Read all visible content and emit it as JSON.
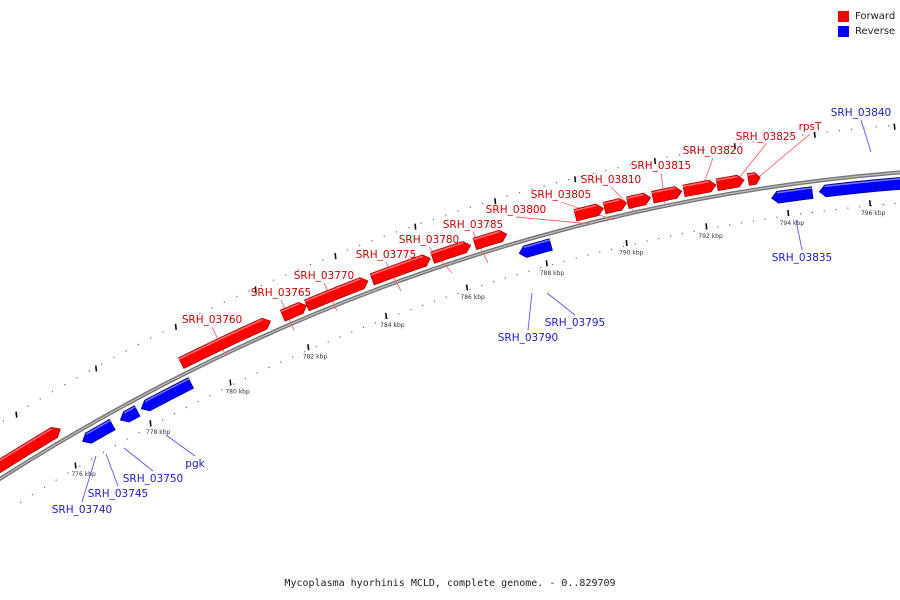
{
  "caption": "Mycoplasma hyorhinis MCLD, complete genome. - 0..829709",
  "legend": [
    {
      "label": "Forward",
      "color": "#ff0000"
    },
    {
      "label": "Reverse",
      "color": "#0000ff"
    }
  ],
  "colors": {
    "forward": "#ff0000",
    "forward_label": "#cc0000",
    "reverse": "#0000ff",
    "reverse_label": "#1a1acc",
    "backbone": "#777777"
  },
  "scale_labels": [
    "776 kbp",
    "778 kbp",
    "780 kbp",
    "782 kbp",
    "784 kbp",
    "786 kbp",
    "788 kbp",
    "790 kbp",
    "792 kbp",
    "794 kbp",
    "796 kbp"
  ],
  "genes_forward": [
    "SRH_03760",
    "SRH_03765",
    "SRH_03770",
    "SRH_03775",
    "SRH_03780",
    "SRH_03785",
    "SRH_03800",
    "SRH_03805",
    "SRH_03810",
    "SRH_03815",
    "SRH_03820",
    "SRH_03825",
    "rpsT"
  ],
  "genes_reverse": [
    "SRH_03740",
    "SRH_03745",
    "SRH_03750",
    "pgk",
    "SRH_03790",
    "SRH_03795",
    "SRH_03835",
    "SRH_03840"
  ]
}
